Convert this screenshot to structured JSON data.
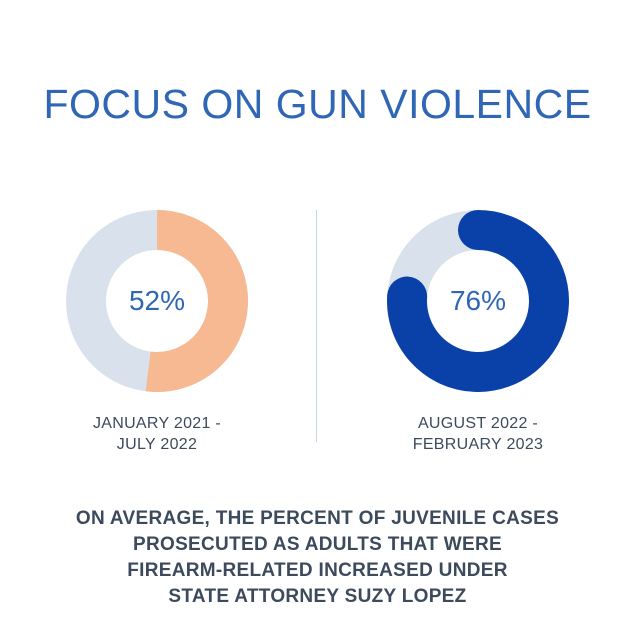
{
  "colors": {
    "title": "#2f66b5",
    "track": "#d9e2ec",
    "left_arc": "#f6b992",
    "right_arc": "#0a41a8",
    "value_text": "#2f66b5",
    "label_text": "#3d4a5c",
    "caption_text": "#3d4a5c",
    "divider": "#c7d5e8"
  },
  "chart_data": {
    "type": "pie",
    "title": "FOCUS ON GUN VIOLENCE",
    "series": [
      {
        "value": 52,
        "value_label": "52%",
        "period_lines": [
          "JANUARY 2021 -",
          "JULY 2022"
        ],
        "color": "#f6b992"
      },
      {
        "value": 76,
        "value_label": "76%",
        "period_lines": [
          "AUGUST 2022 -",
          "FEBRUARY 2023"
        ],
        "color": "#0a41a8"
      }
    ],
    "caption_lines": [
      "ON AVERAGE, THE PERCENT OF JUVENILE CASES",
      "PROSECUTED AS ADULTS THAT WERE",
      "FIREARM-RELATED INCREASED UNDER",
      "STATE ATTORNEY SUZY LOPEZ"
    ]
  }
}
